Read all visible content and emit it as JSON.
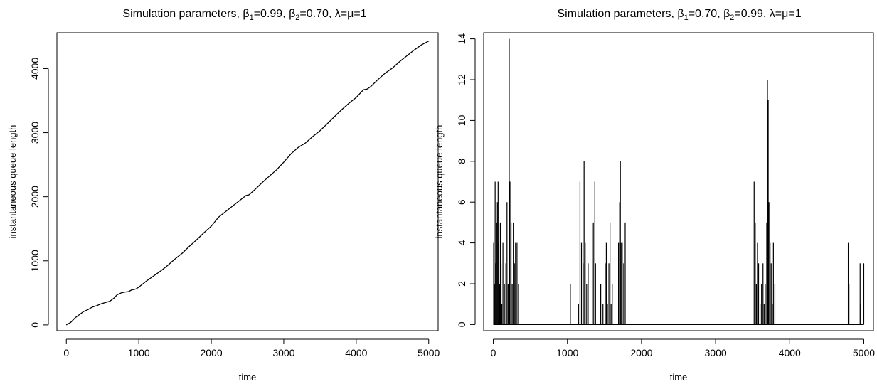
{
  "chart_data": [
    {
      "type": "line",
      "title": {
        "prefix": "Simulation parameters, ",
        "b1_sym": "β",
        "b1_sub": "1",
        "b1_val": "=0.99, ",
        "b2_sym": "β",
        "b2_sub": "2",
        "b2_val": "=0.70, ",
        "lm": "λ=μ=1"
      },
      "xlabel": "time",
      "ylabel": "instantaneous queue length",
      "xlim": [
        -130,
        5130
      ],
      "ylim": [
        -90,
        4560
      ],
      "xticks": [
        0,
        1000,
        2000,
        3000,
        4000,
        5000
      ],
      "yticks": [
        0,
        1000,
        2000,
        3000,
        4000
      ],
      "series": [
        {
          "x": [
            0,
            60,
            120,
            180,
            240,
            300,
            360,
            420,
            480,
            540,
            600,
            660,
            700,
            760,
            800,
            860,
            900,
            960,
            1000,
            1100,
            1200,
            1300,
            1400,
            1500,
            1600,
            1700,
            1800,
            1900,
            2000,
            2100,
            2200,
            2300,
            2400,
            2480,
            2520,
            2600,
            2700,
            2800,
            2900,
            3000,
            3100,
            3200,
            3300,
            3400,
            3500,
            3600,
            3700,
            3800,
            3900,
            4000,
            4100,
            4150,
            4200,
            4300,
            4400,
            4500,
            4600,
            4700,
            4800,
            4900,
            5000
          ],
          "y": [
            0,
            40,
            110,
            160,
            210,
            240,
            280,
            300,
            330,
            350,
            370,
            420,
            470,
            500,
            510,
            520,
            545,
            560,
            590,
            680,
            760,
            840,
            930,
            1030,
            1120,
            1230,
            1330,
            1440,
            1540,
            1680,
            1770,
            1860,
            1950,
            2020,
            2030,
            2110,
            2220,
            2320,
            2420,
            2540,
            2670,
            2770,
            2840,
            2940,
            3030,
            3140,
            3250,
            3360,
            3460,
            3550,
            3670,
            3680,
            3720,
            3830,
            3930,
            4010,
            4110,
            4200,
            4290,
            4370,
            4430
          ]
        }
      ]
    },
    {
      "type": "line",
      "title": {
        "prefix": "Simulation parameters, ",
        "b1_sym": "β",
        "b1_sub": "1",
        "b1_val": "=0.70, ",
        "b2_sym": "β",
        "b2_sub": "2",
        "b2_val": "=0.99, ",
        "lm": "λ=μ=1"
      },
      "xlabel": "time",
      "ylabel": "instantaneous queue length",
      "xlim": [
        -130,
        5130
      ],
      "ylim": [
        -0.3,
        14.3
      ],
      "xticks": [
        0,
        1000,
        2000,
        3000,
        4000,
        5000
      ],
      "yticks": [
        0,
        2,
        4,
        6,
        8,
        10,
        12,
        14
      ],
      "spikes": [
        [
          5,
          4
        ],
        [
          15,
          2
        ],
        [
          25,
          7
        ],
        [
          35,
          3
        ],
        [
          45,
          5
        ],
        [
          55,
          6
        ],
        [
          65,
          7
        ],
        [
          75,
          4
        ],
        [
          85,
          2
        ],
        [
          95,
          5
        ],
        [
          105,
          3
        ],
        [
          115,
          1
        ],
        [
          130,
          4
        ],
        [
          150,
          2
        ],
        [
          170,
          3
        ],
        [
          185,
          6
        ],
        [
          200,
          2
        ],
        [
          215,
          14
        ],
        [
          225,
          7
        ],
        [
          240,
          5
        ],
        [
          255,
          2
        ],
        [
          270,
          5
        ],
        [
          285,
          3
        ],
        [
          300,
          4
        ],
        [
          320,
          4
        ],
        [
          340,
          2
        ],
        [
          1040,
          2
        ],
        [
          1150,
          1
        ],
        [
          1170,
          7
        ],
        [
          1190,
          4
        ],
        [
          1210,
          3
        ],
        [
          1225,
          8
        ],
        [
          1240,
          4
        ],
        [
          1260,
          2
        ],
        [
          1280,
          3
        ],
        [
          1350,
          5
        ],
        [
          1370,
          7
        ],
        [
          1380,
          3
        ],
        [
          1450,
          2
        ],
        [
          1480,
          1
        ],
        [
          1510,
          3
        ],
        [
          1525,
          4
        ],
        [
          1540,
          1
        ],
        [
          1560,
          3
        ],
        [
          1575,
          5
        ],
        [
          1590,
          1
        ],
        [
          1605,
          2
        ],
        [
          1690,
          4
        ],
        [
          1705,
          6
        ],
        [
          1715,
          8
        ],
        [
          1725,
          4
        ],
        [
          1740,
          4
        ],
        [
          1760,
          3
        ],
        [
          1780,
          5
        ],
        [
          3520,
          7
        ],
        [
          3535,
          5
        ],
        [
          3550,
          2
        ],
        [
          3565,
          4
        ],
        [
          3580,
          3
        ],
        [
          3600,
          1
        ],
        [
          3620,
          2
        ],
        [
          3640,
          3
        ],
        [
          3655,
          1
        ],
        [
          3670,
          2
        ],
        [
          3690,
          5
        ],
        [
          3700,
          12
        ],
        [
          3710,
          11
        ],
        [
          3720,
          6
        ],
        [
          3735,
          4
        ],
        [
          3750,
          3
        ],
        [
          3765,
          1
        ],
        [
          3780,
          4
        ],
        [
          3800,
          2
        ],
        [
          4790,
          4
        ],
        [
          4800,
          2
        ],
        [
          4950,
          3
        ],
        [
          4960,
          1
        ],
        [
          5000,
          3
        ]
      ]
    }
  ]
}
